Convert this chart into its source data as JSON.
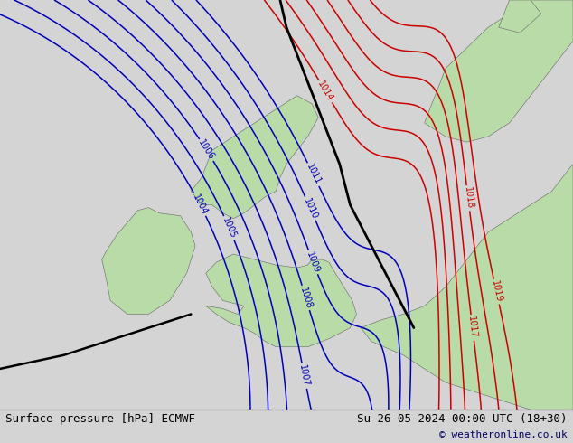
{
  "title_left": "Surface pressure [hPa] ECMWF",
  "title_right": "Su 26-05-2024 00:00 UTC (18+30)",
  "copyright": "© weatheronline.co.uk",
  "bg_color": "#d4d4d4",
  "land_color": "#b8dba8",
  "blue_contour_color": "#0000bb",
  "red_contour_color": "#cc0000",
  "black_contour_color": "#000000",
  "font_size_label": 7,
  "font_size_bottom": 9,
  "bottom_bar_color": "#cccccc",
  "xlim": [
    -15,
    12
  ],
  "ylim": [
    48,
    63
  ],
  "figw": 6.34,
  "figh": 4.9,
  "dpi": 100
}
